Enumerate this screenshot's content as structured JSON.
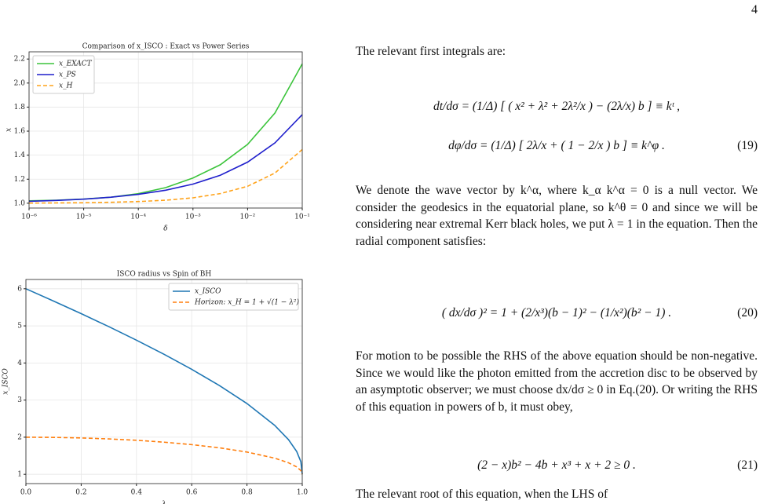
{
  "page_number": "4",
  "chart_data": [
    {
      "type": "line",
      "title": "Comparison of x_ISCO : Exact vs Power Series",
      "xlabel": "δ",
      "ylabel": "x",
      "xscale": "log",
      "grid": true,
      "legend": "upper left",
      "x": [
        1e-06,
        3.16e-06,
        1e-05,
        3.16e-05,
        0.0001,
        0.000316,
        0.001,
        0.00316,
        0.01,
        0.0316,
        0.1
      ],
      "series": [
        {
          "name": "x_EXACT",
          "color": "#3cc43c",
          "dash": false,
          "values": [
            1.02,
            1.025,
            1.035,
            1.05,
            1.08,
            1.13,
            1.21,
            1.32,
            1.49,
            1.75,
            2.16
          ]
        },
        {
          "name": "x_PS",
          "color": "#1f1fcc",
          "dash": false,
          "values": [
            1.016,
            1.023,
            1.034,
            1.05,
            1.074,
            1.108,
            1.159,
            1.233,
            1.342,
            1.502,
            1.737
          ]
        },
        {
          "name": "x_H",
          "color": "#ffa31a",
          "dash": true,
          "values": [
            1.001,
            1.0025,
            1.004,
            1.008,
            1.014,
            1.025,
            1.045,
            1.08,
            1.141,
            1.251,
            1.447
          ]
        }
      ],
      "xlim": [
        1e-06,
        0.1
      ],
      "xticks": [
        {
          "value": 1e-06,
          "label": "10⁻⁶"
        },
        {
          "value": 1e-05,
          "label": "10⁻⁵"
        },
        {
          "value": 0.0001,
          "label": "10⁻⁴"
        },
        {
          "value": 0.001,
          "label": "10⁻³"
        },
        {
          "value": 0.01,
          "label": "10⁻²"
        },
        {
          "value": 0.1,
          "label": "10⁻¹"
        }
      ],
      "ylim": [
        0.96,
        2.26
      ],
      "yticks": [
        {
          "value": 1,
          "label": "1.0"
        },
        1.2,
        1.4,
        1.6,
        1.8,
        {
          "value": 2,
          "label": "2.0"
        },
        2.2
      ]
    },
    {
      "type": "line",
      "title": "ISCO radius vs Spin of BH",
      "xlabel": "λ",
      "ylabel": "x_ISCO",
      "xscale": "linear",
      "grid": true,
      "legend": "upper right",
      "x": [
        0,
        0.1,
        0.2,
        0.3,
        0.4,
        0.5,
        0.6,
        0.7,
        0.8,
        0.9,
        0.95,
        0.98,
        0.995,
        1
      ],
      "series": [
        {
          "name": "x_ISCO",
          "color": "#1f77b4",
          "dash": false,
          "values": [
            6,
            5.669,
            5.329,
            4.979,
            4.614,
            4.233,
            3.829,
            3.393,
            2.907,
            2.321,
            1.937,
            1.614,
            1.34,
            1.0
          ]
        },
        {
          "name": "Horizon: x_H = 1 + √(1 − λ²)",
          "color": "#ff7f0e",
          "dash": true,
          "values": [
            2,
            1.995,
            1.98,
            1.954,
            1.917,
            1.866,
            1.8,
            1.714,
            1.6,
            1.436,
            1.312,
            1.199,
            1.1,
            1.0
          ]
        }
      ],
      "xlim": [
        0,
        1
      ],
      "xticks": [
        {
          "value": 0,
          "label": "0.0"
        },
        0.2,
        0.4,
        0.6,
        0.8,
        {
          "value": 1,
          "label": "1.0"
        }
      ],
      "ylim": [
        0.75,
        6.25
      ],
      "yticks": [
        1,
        2,
        3,
        4,
        5,
        6
      ]
    }
  ],
  "text": {
    "intro": "The relevant first integrals are:",
    "eq19a": "dt/dσ  =  (1/Δ) [ ( x² + λ² + 2λ²/x ) − (2λ/x) b ] ≡ kᵗ ,",
    "eq19b": "dφ/dσ  =  (1/Δ) [ 2λ/x + ( 1 − 2/x ) b ] ≡ k^φ .",
    "eq19_num": "(19)",
    "para1": "We denote the wave vector by k^α, where k_α k^α = 0 is a null vector. We consider the geodesics in the equatorial plane, so k^θ = 0 and since we will be considering near extremal Kerr black holes, we put λ = 1 in the equation. Then the radial component satisfies:",
    "eq20": "( dx/dσ )² = 1 + (2/x³)(b − 1)² − (1/x²)(b² − 1) .",
    "eq20_num": "(20)",
    "para2": "For motion to be possible the RHS of the above equation should be non-negative. Since we would like the photon emitted from the accretion disc to be observed by an asymptotic observer; we must choose dx/dσ ≥ 0 in Eq.(20). Or writing the RHS of this equation in powers of b, it must obey,",
    "eq21": "(2 − x)b² − 4b + x³ + x + 2 ≥ 0 .",
    "eq21_num": "(21)",
    "para3": "The relevant root of this equation, when the LHS of"
  }
}
